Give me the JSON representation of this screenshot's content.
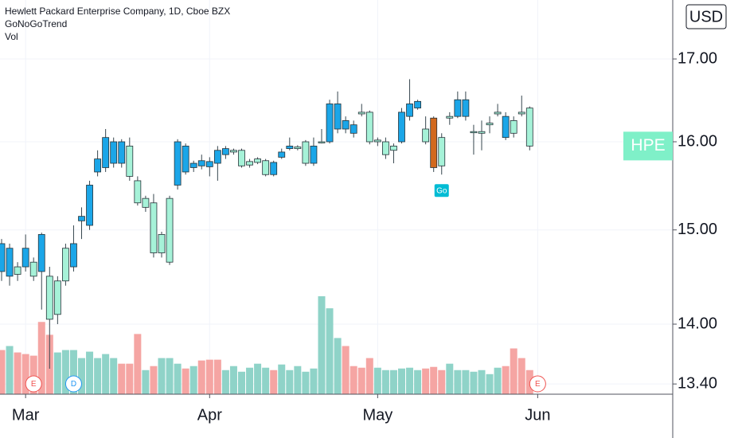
{
  "chart_data": {
    "type": "candlestick",
    "title": "Hewlett Packard Enterprise Company, 1D, Cboe BZX",
    "indicators": [
      "GoNoGoTrend",
      "Vol"
    ],
    "currency": "USD",
    "symbol": "HPE",
    "symbol_color": "#7ff0c8",
    "log_scale": true,
    "grid": true,
    "ylim": [
      13.3,
      17.75
    ],
    "yticks": [
      {
        "value": 17,
        "label": "17.00"
      },
      {
        "value": 16,
        "label": "16.00"
      },
      {
        "value": 15,
        "label": "15.00"
      },
      {
        "value": 14,
        "label": "14.00"
      },
      {
        "value": 13.4,
        "label": "13.40"
      }
    ],
    "categories": [
      null,
      null,
      null,
      "Mar",
      null,
      null,
      null,
      null,
      null,
      null,
      null,
      null,
      null,
      null,
      null,
      null,
      null,
      null,
      null,
      null,
      null,
      null,
      null,
      null,
      null,
      null,
      "Apr",
      null,
      null,
      null,
      null,
      null,
      null,
      null,
      null,
      null,
      null,
      null,
      null,
      null,
      null,
      null,
      null,
      null,
      null,
      null,
      null,
      "May",
      null,
      null,
      null,
      null,
      null,
      null,
      null,
      null,
      null,
      null,
      null,
      null,
      null,
      null,
      null,
      null,
      null,
      null,
      null,
      "Jun"
    ],
    "open": [
      14.85,
      14.8,
      14.6,
      14.8,
      14.65,
      14.95,
      14.5,
      14.45,
      14.8,
      14.85,
      15.15,
      15.5,
      15.8,
      16.05,
      16.0,
      16.0,
      15.95,
      15.55,
      15.35,
      15.3,
      14.95,
      15.35,
      16.0,
      15.95,
      15.75,
      15.78,
      15.77,
      15.9,
      15.92,
      15.9,
      15.9,
      15.77,
      15.8,
      15.78,
      15.76,
      15.88,
      15.95,
      15.94,
      16.0,
      15.95,
      16.0,
      16.45,
      16.45,
      16.25,
      16.2,
      16.35,
      16.35,
      16.02,
      16.0,
      15.95,
      16.35,
      16.45,
      16.48,
      16.15,
      16.28,
      16.05,
      16.3,
      16.5,
      16.5,
      16.12,
      16.12,
      16.22,
      16.35,
      16.3,
      16.25,
      16.35,
      16.4,
      null
    ],
    "high": [
      14.9,
      14.85,
      14.65,
      14.95,
      14.7,
      14.97,
      14.6,
      14.5,
      14.85,
      15.05,
      15.25,
      15.55,
      15.9,
      16.15,
      16.05,
      16.03,
      16.05,
      15.6,
      15.38,
      15.4,
      14.98,
      15.38,
      16.03,
      15.98,
      15.78,
      15.85,
      15.82,
      15.95,
      15.95,
      15.92,
      15.92,
      15.8,
      15.82,
      15.8,
      15.78,
      15.92,
      16.05,
      15.96,
      16.02,
      16.05,
      16.15,
      16.5,
      16.6,
      16.3,
      16.25,
      16.45,
      16.37,
      16.05,
      16.05,
      15.98,
      16.4,
      16.75,
      16.5,
      16.3,
      16.3,
      16.1,
      16.35,
      16.6,
      16.6,
      16.2,
      16.25,
      16.3,
      16.45,
      16.35,
      16.3,
      16.55,
      16.42,
      null
    ],
    "low": [
      14.45,
      14.4,
      14.45,
      14.55,
      14.45,
      14.15,
      13.55,
      14.0,
      14.4,
      14.55,
      14.9,
      15.0,
      15.6,
      15.65,
      15.7,
      15.7,
      15.55,
      15.27,
      15.2,
      14.7,
      14.7,
      14.62,
      15.45,
      15.62,
      15.65,
      15.68,
      15.6,
      15.55,
      15.8,
      15.85,
      15.7,
      15.7,
      15.74,
      15.6,
      15.6,
      15.8,
      15.9,
      15.9,
      15.72,
      15.72,
      15.98,
      15.98,
      16.1,
      16.1,
      16.05,
      16.3,
      15.97,
      15.95,
      15.8,
      15.75,
      15.98,
      16.25,
      16.38,
      15.97,
      15.65,
      15.62,
      16.2,
      16.28,
      16.25,
      15.85,
      15.9,
      16.1,
      16.3,
      16.02,
      16.05,
      16.3,
      15.9,
      null
    ],
    "close": [
      14.55,
      14.5,
      14.52,
      14.6,
      14.5,
      14.55,
      14.05,
      14.1,
      14.45,
      14.6,
      15.1,
      15.05,
      15.65,
      15.7,
      15.75,
      15.75,
      15.6,
      15.3,
      15.25,
      14.75,
      14.75,
      14.65,
      15.5,
      15.65,
      15.7,
      15.72,
      15.71,
      15.75,
      15.85,
      15.88,
      15.72,
      15.73,
      15.76,
      15.62,
      15.62,
      15.82,
      15.92,
      15.92,
      15.75,
      15.75,
      16.0,
      16.0,
      16.15,
      16.15,
      16.1,
      16.33,
      16.0,
      16.0,
      15.85,
      15.9,
      16.0,
      16.3,
      16.4,
      16.0,
      15.7,
      15.72,
      16.28,
      16.3,
      16.3,
      16.11,
      16.1,
      16.2,
      16.33,
      16.05,
      16.1,
      16.33,
      15.95,
      null
    ],
    "colors": [
      "#1ba6e8",
      "#1ba6e8",
      "#a6f2d8",
      "#1ba6e8",
      "#a6f2d8",
      "#1ba6e8",
      "#a6f2d8",
      "#a6f2d8",
      "#a6f2d8",
      "#1ba6e8",
      "#1ba6e8",
      "#1ba6e8",
      "#1ba6e8",
      "#1ba6e8",
      "#1ba6e8",
      "#1ba6e8",
      "#a6f2d8",
      "#a6f2d8",
      "#a6f2d8",
      "#a6f2d8",
      "#a6f2d8",
      "#a6f2d8",
      "#1ba6e8",
      "#1ba6e8",
      "#1ba6e8",
      "#1ba6e8",
      "#1ba6e8",
      "#1ba6e8",
      "#1ba6e8",
      "#a6f2d8",
      "#a6f2d8",
      "#a6f2d8",
      "#a6f2d8",
      "#a6f2d8",
      "#1ba6e8",
      "#1ba6e8",
      "#1ba6e8",
      "#a6f2d8",
      "#a6f2d8",
      "#1ba6e8",
      "#a6f2d8",
      "#1ba6e8",
      "#1ba6e8",
      "#1ba6e8",
      "#1ba6e8",
      "#a6f2d8",
      "#a6f2d8",
      "#a6f2d8",
      "#a6f2d8",
      "#a6f2d8",
      "#1ba6e8",
      "#1ba6e8",
      "#1ba6e8",
      "#a6f2d8",
      "#d2691e",
      "#a6f2d8",
      "#a6f2d8",
      "#1ba6e8",
      "#1ba6e8",
      "#a6f2d8",
      "#a6f2d8",
      "#a6f2d8",
      "#a6f2d8",
      "#1ba6e8",
      "#a6f2d8",
      "#a6f2d8",
      "#a6f2d8",
      null
    ],
    "volume": [
      55,
      60,
      52,
      50,
      48,
      90,
      74,
      52,
      55,
      55,
      45,
      53,
      45,
      50,
      45,
      38,
      38,
      75,
      30,
      35,
      45,
      45,
      38,
      32,
      35,
      42,
      43,
      43,
      30,
      35,
      28,
      33,
      38,
      33,
      30,
      37,
      30,
      35,
      28,
      32,
      122,
      107,
      70,
      60,
      35,
      33,
      45,
      33,
      30,
      30,
      32,
      33,
      30,
      32,
      34,
      30,
      38,
      30,
      30,
      28,
      30,
      25,
      33,
      35,
      57,
      45,
      30,
      null
    ],
    "volume_colors": [
      "#f5a5a3",
      "#8fd3c8",
      "#f5a5a3",
      "#f5a5a3",
      "#f5a5a3",
      "#f5a5a3",
      "#f5a5a3",
      "#8fd3c8",
      "#8fd3c8",
      "#8fd3c8",
      "#8fd3c8",
      "#8fd3c8",
      "#8fd3c8",
      "#8fd3c8",
      "#8fd3c8",
      "#f5a5a3",
      "#f5a5a3",
      "#f5a5a3",
      "#8fd3c8",
      "#f5a5a3",
      "#8fd3c8",
      "#8fd3c8",
      "#8fd3c8",
      "#f5a5a3",
      "#8fd3c8",
      "#f5a5a3",
      "#f5a5a3",
      "#f5a5a3",
      "#8fd3c8",
      "#8fd3c8",
      "#8fd3c8",
      "#8fd3c8",
      "#8fd3c8",
      "#8fd3c8",
      "#f5a5a3",
      "#8fd3c8",
      "#8fd3c8",
      "#8fd3c8",
      "#8fd3c8",
      "#8fd3c8",
      "#8fd3c8",
      "#8fd3c8",
      "#8fd3c8",
      "#f5a5a3",
      "#f5a5a3",
      "#f5a5a3",
      "#f5a5a3",
      "#8fd3c8",
      "#8fd3c8",
      "#8fd3c8",
      "#8fd3c8",
      "#8fd3c8",
      "#8fd3c8",
      "#f5a5a3",
      "#f5a5a3",
      "#f5a5a3",
      "#8fd3c8",
      "#8fd3c8",
      "#8fd3c8",
      "#8fd3c8",
      "#8fd3c8",
      "#8fd3c8",
      "#8fd3c8",
      "#f5a5a3",
      "#f5a5a3",
      "#f5a5a3",
      "#f5a5a3",
      null
    ],
    "event_labels": [
      null,
      null,
      null,
      null,
      "E",
      null,
      null,
      null,
      null,
      "D",
      null,
      null,
      null,
      null,
      null,
      null,
      null,
      null,
      null,
      null,
      null,
      null,
      null,
      null,
      null,
      null,
      null,
      null,
      null,
      null,
      null,
      null,
      null,
      null,
      null,
      null,
      null,
      null,
      null,
      null,
      null,
      null,
      null,
      null,
      null,
      null,
      null,
      null,
      null,
      null,
      null,
      null,
      null,
      null,
      null,
      null,
      null,
      null,
      null,
      null,
      null,
      null,
      null,
      null,
      null,
      null,
      null,
      "E"
    ],
    "signal_labels": [
      null,
      null,
      null,
      null,
      null,
      null,
      null,
      null,
      null,
      null,
      null,
      null,
      null,
      null,
      null,
      null,
      null,
      null,
      null,
      null,
      null,
      null,
      null,
      null,
      null,
      null,
      null,
      null,
      null,
      null,
      null,
      null,
      null,
      null,
      null,
      null,
      null,
      null,
      null,
      null,
      null,
      null,
      null,
      null,
      null,
      null,
      null,
      null,
      null,
      null,
      null,
      null,
      null,
      null,
      null,
      "Go",
      null,
      null,
      null,
      null,
      null,
      null,
      null,
      null,
      null,
      null,
      null,
      null
    ]
  }
}
